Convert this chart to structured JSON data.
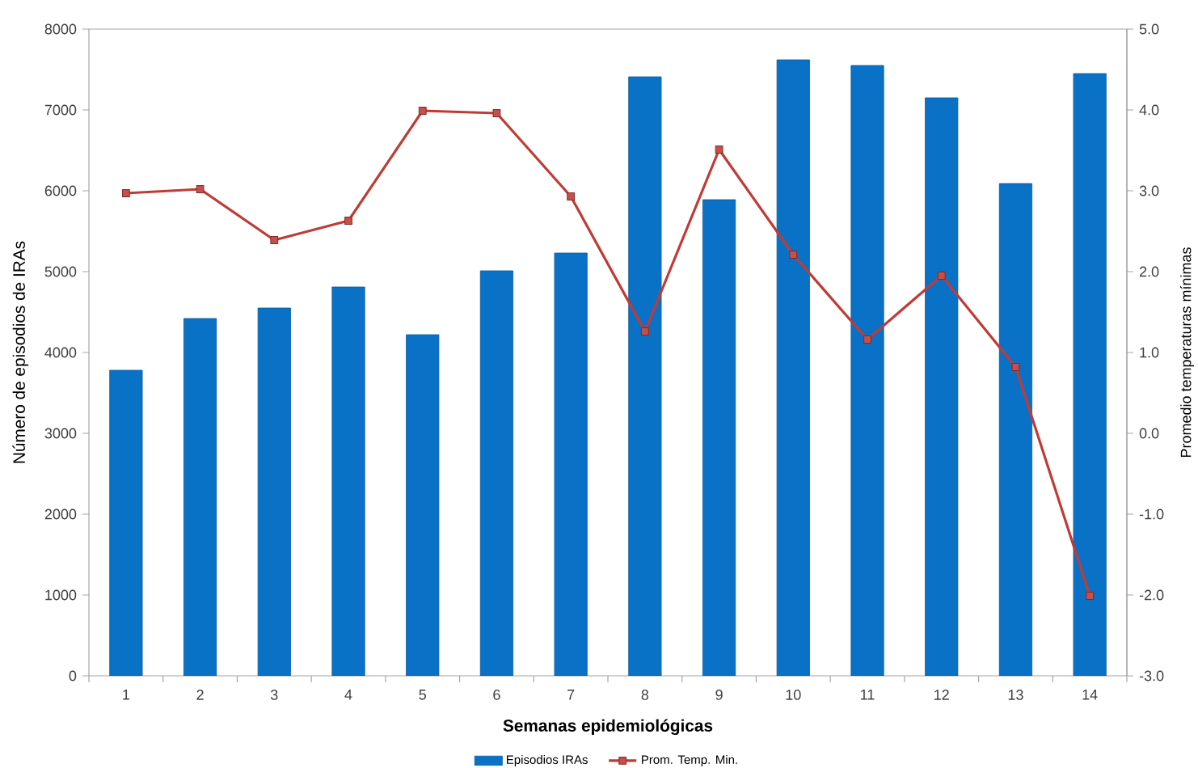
{
  "chart_data": {
    "type": "bar",
    "xlabel": "Semanas epidemiológicas",
    "ylabel": "Número de episodios de IRAs",
    "y2label": "Promedio temperaturas mínimas",
    "categories": [
      "1",
      "2",
      "3",
      "4",
      "5",
      "6",
      "7",
      "8",
      "9",
      "10",
      "11",
      "12",
      "13",
      "14"
    ],
    "series": [
      {
        "name": "Episodios IRAs",
        "color": "#0a72c6",
        "values": [
          3780,
          4420,
          4550,
          4810,
          4220,
          5010,
          5230,
          7410,
          5890,
          7620,
          7550,
          7150,
          6090,
          7450
        ]
      },
      {
        "name": "Prom. Temp. Min.",
        "type": "line",
        "axis": "y2",
        "color": "#bf3b36",
        "marker": "square",
        "line_style": "solid",
        "values": [
          2.97,
          3.02,
          2.39,
          2.63,
          3.99,
          3.96,
          2.93,
          1.26,
          3.51,
          2.21,
          1.16,
          1.95,
          0.82,
          -2.01
        ]
      }
    ],
    "ylim": [
      0,
      8000
    ],
    "yticks": [
      0,
      1000,
      2000,
      3000,
      4000,
      5000,
      6000,
      7000,
      8000
    ],
    "y2lim": [
      -3,
      5
    ],
    "y2ticks": [
      {
        "value": -3,
        "label": "-3.0"
      },
      {
        "value": -2,
        "label": "-2.0"
      },
      {
        "value": -1,
        "label": "-1.0"
      },
      {
        "value": 0,
        "label": "0.0"
      },
      {
        "value": 1,
        "label": "1.0"
      },
      {
        "value": 2,
        "label": "2.0"
      },
      {
        "value": 3,
        "label": "3.0"
      },
      {
        "value": 4,
        "label": "4.0"
      },
      {
        "value": 5,
        "label": "5.0"
      }
    ],
    "legend": "bottom"
  }
}
